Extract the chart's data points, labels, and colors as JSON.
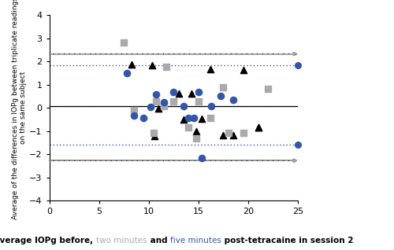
{
  "ylabel": "Average of the differences in IOPg between triplicate readings\non the same subject",
  "xlim": [
    0,
    25
  ],
  "ylim": [
    -4,
    4
  ],
  "xticks": [
    0,
    5,
    10,
    15,
    20,
    25
  ],
  "yticks": [
    -4,
    -3,
    -2,
    -1,
    0,
    1,
    2,
    3,
    4
  ],
  "black_upper": 2.32,
  "black_lower": -2.27,
  "black_mean": 0.07,
  "gray_upper": 2.32,
  "gray_lower": -2.27,
  "gray_mean": 0.07,
  "blue_upper": 1.82,
  "blue_lower": -1.57,
  "blue_mean": 0.07,
  "tri_x": [
    8.3,
    10.3,
    10.6,
    11.0,
    13.0,
    13.5,
    14.3,
    14.8,
    15.3,
    16.2,
    17.5,
    18.5,
    19.5,
    21.0,
    21.0
  ],
  "tri_y": [
    1.87,
    1.83,
    -1.22,
    -0.03,
    0.6,
    -0.5,
    0.63,
    -1.0,
    -0.47,
    1.67,
    -1.17,
    -1.17,
    1.63,
    -0.83,
    -0.83
  ],
  "sq_x": [
    7.5,
    8.5,
    10.5,
    10.7,
    11.5,
    11.8,
    12.5,
    14.0,
    14.8,
    15.0,
    16.2,
    17.5,
    18.0,
    19.5,
    22.0
  ],
  "sq_y": [
    2.8,
    -0.08,
    -1.08,
    0.28,
    0.08,
    1.75,
    0.28,
    -0.83,
    -1.33,
    0.28,
    -0.42,
    0.9,
    -1.08,
    -1.08,
    0.83
  ],
  "circ_x": [
    7.8,
    8.5,
    9.5,
    10.2,
    10.7,
    11.5,
    12.5,
    13.5,
    14.0,
    14.5,
    15.0,
    16.3,
    17.2,
    18.5,
    15.3
  ],
  "circ_y": [
    1.5,
    -0.33,
    -0.42,
    0.05,
    0.58,
    0.25,
    0.67,
    0.08,
    -0.42,
    -0.42,
    0.67,
    0.08,
    0.5,
    0.35,
    -2.17
  ],
  "black_color": "#000000",
  "gray_color": "#aaaaaa",
  "blue_color": "#3355aa",
  "ann_fs": 6.5,
  "ylabel_fs": 6.5,
  "tick_fs": 8,
  "xlabel_fs": 7.5
}
